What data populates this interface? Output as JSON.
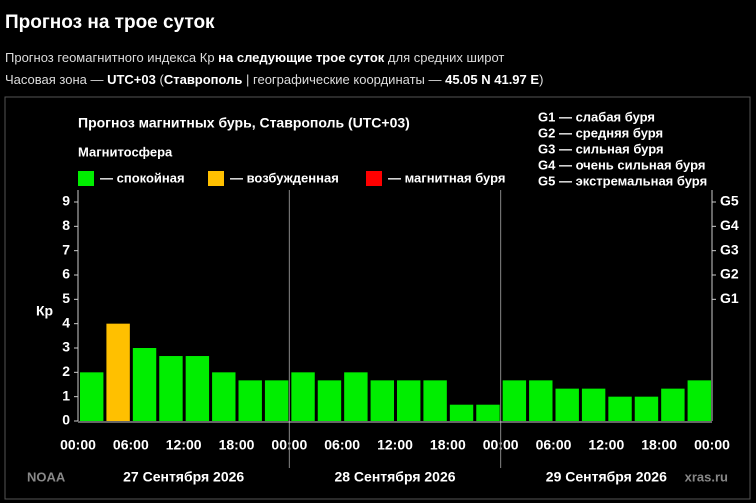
{
  "header": {
    "title": "Прогноз на трое суток",
    "line1": [
      "Прогноз геомагнитного индекса Кр ",
      "на следующие трое суток",
      " для средних широт"
    ],
    "line2": [
      "Часовая зона — ",
      "UTC+03",
      " (",
      "Ставрополь",
      " | географические координаты — ",
      "45.05 N 41.97 E",
      ")"
    ]
  },
  "chart_data": {
    "type": "bar",
    "title": "Прогноз магнитных бурь, Ставрополь (UTC+03)",
    "legend_title": "Магнитосфера",
    "legend": [
      {
        "name": "— спокойная",
        "color": "#00ee00"
      },
      {
        "name": "— возбужденная",
        "color": "#ffc000"
      },
      {
        "name": "— магнитная буря",
        "color": "#ff0000"
      }
    ],
    "scale_legend": [
      "G1 — слабая буря",
      "G2 — средняя буря",
      "G3 — сильная буря",
      "G4 — очень сильная буря",
      "G5 — экстремальная буря"
    ],
    "ylabel": "Кр",
    "values": [
      2,
      4,
      3,
      2.67,
      2.67,
      2,
      1.67,
      1.67,
      2,
      1.67,
      2,
      1.67,
      1.67,
      1.67,
      0.67,
      0.67,
      1.67,
      1.67,
      1.33,
      1.33,
      1,
      1,
      1.33,
      1.67
    ],
    "colors": [
      "#00ee00",
      "#ffc000",
      "#00ee00",
      "#00ee00",
      "#00ee00",
      "#00ee00",
      "#00ee00",
      "#00ee00",
      "#00ee00",
      "#00ee00",
      "#00ee00",
      "#00ee00",
      "#00ee00",
      "#00ee00",
      "#00ee00",
      "#00ee00",
      "#00ee00",
      "#00ee00",
      "#00ee00",
      "#00ee00",
      "#00ee00",
      "#00ee00",
      "#00ee00",
      "#00ee00"
    ],
    "xticks": [
      "00:00",
      "06:00",
      "12:00",
      "18:00",
      "00:00",
      "06:00",
      "12:00",
      "18:00",
      "00:00",
      "06:00",
      "12:00",
      "18:00",
      "00:00"
    ],
    "days": [
      "27 Сентября 2026",
      "28 Сентября 2026",
      "29 Сентября 2026"
    ],
    "ylim": [
      0,
      9
    ],
    "yticks": [
      0,
      1,
      2,
      3,
      4,
      5,
      6,
      7,
      8,
      9
    ],
    "y2lim": [
      0,
      9
    ],
    "y2ticks": [
      {
        "value": 5,
        "label": "G1"
      },
      {
        "value": 6,
        "label": "G2"
      },
      {
        "value": 7,
        "label": "G3"
      },
      {
        "value": 8,
        "label": "G4"
      },
      {
        "value": 9,
        "label": "G5"
      }
    ],
    "source": "NOAA",
    "site": "xras.ru"
  }
}
